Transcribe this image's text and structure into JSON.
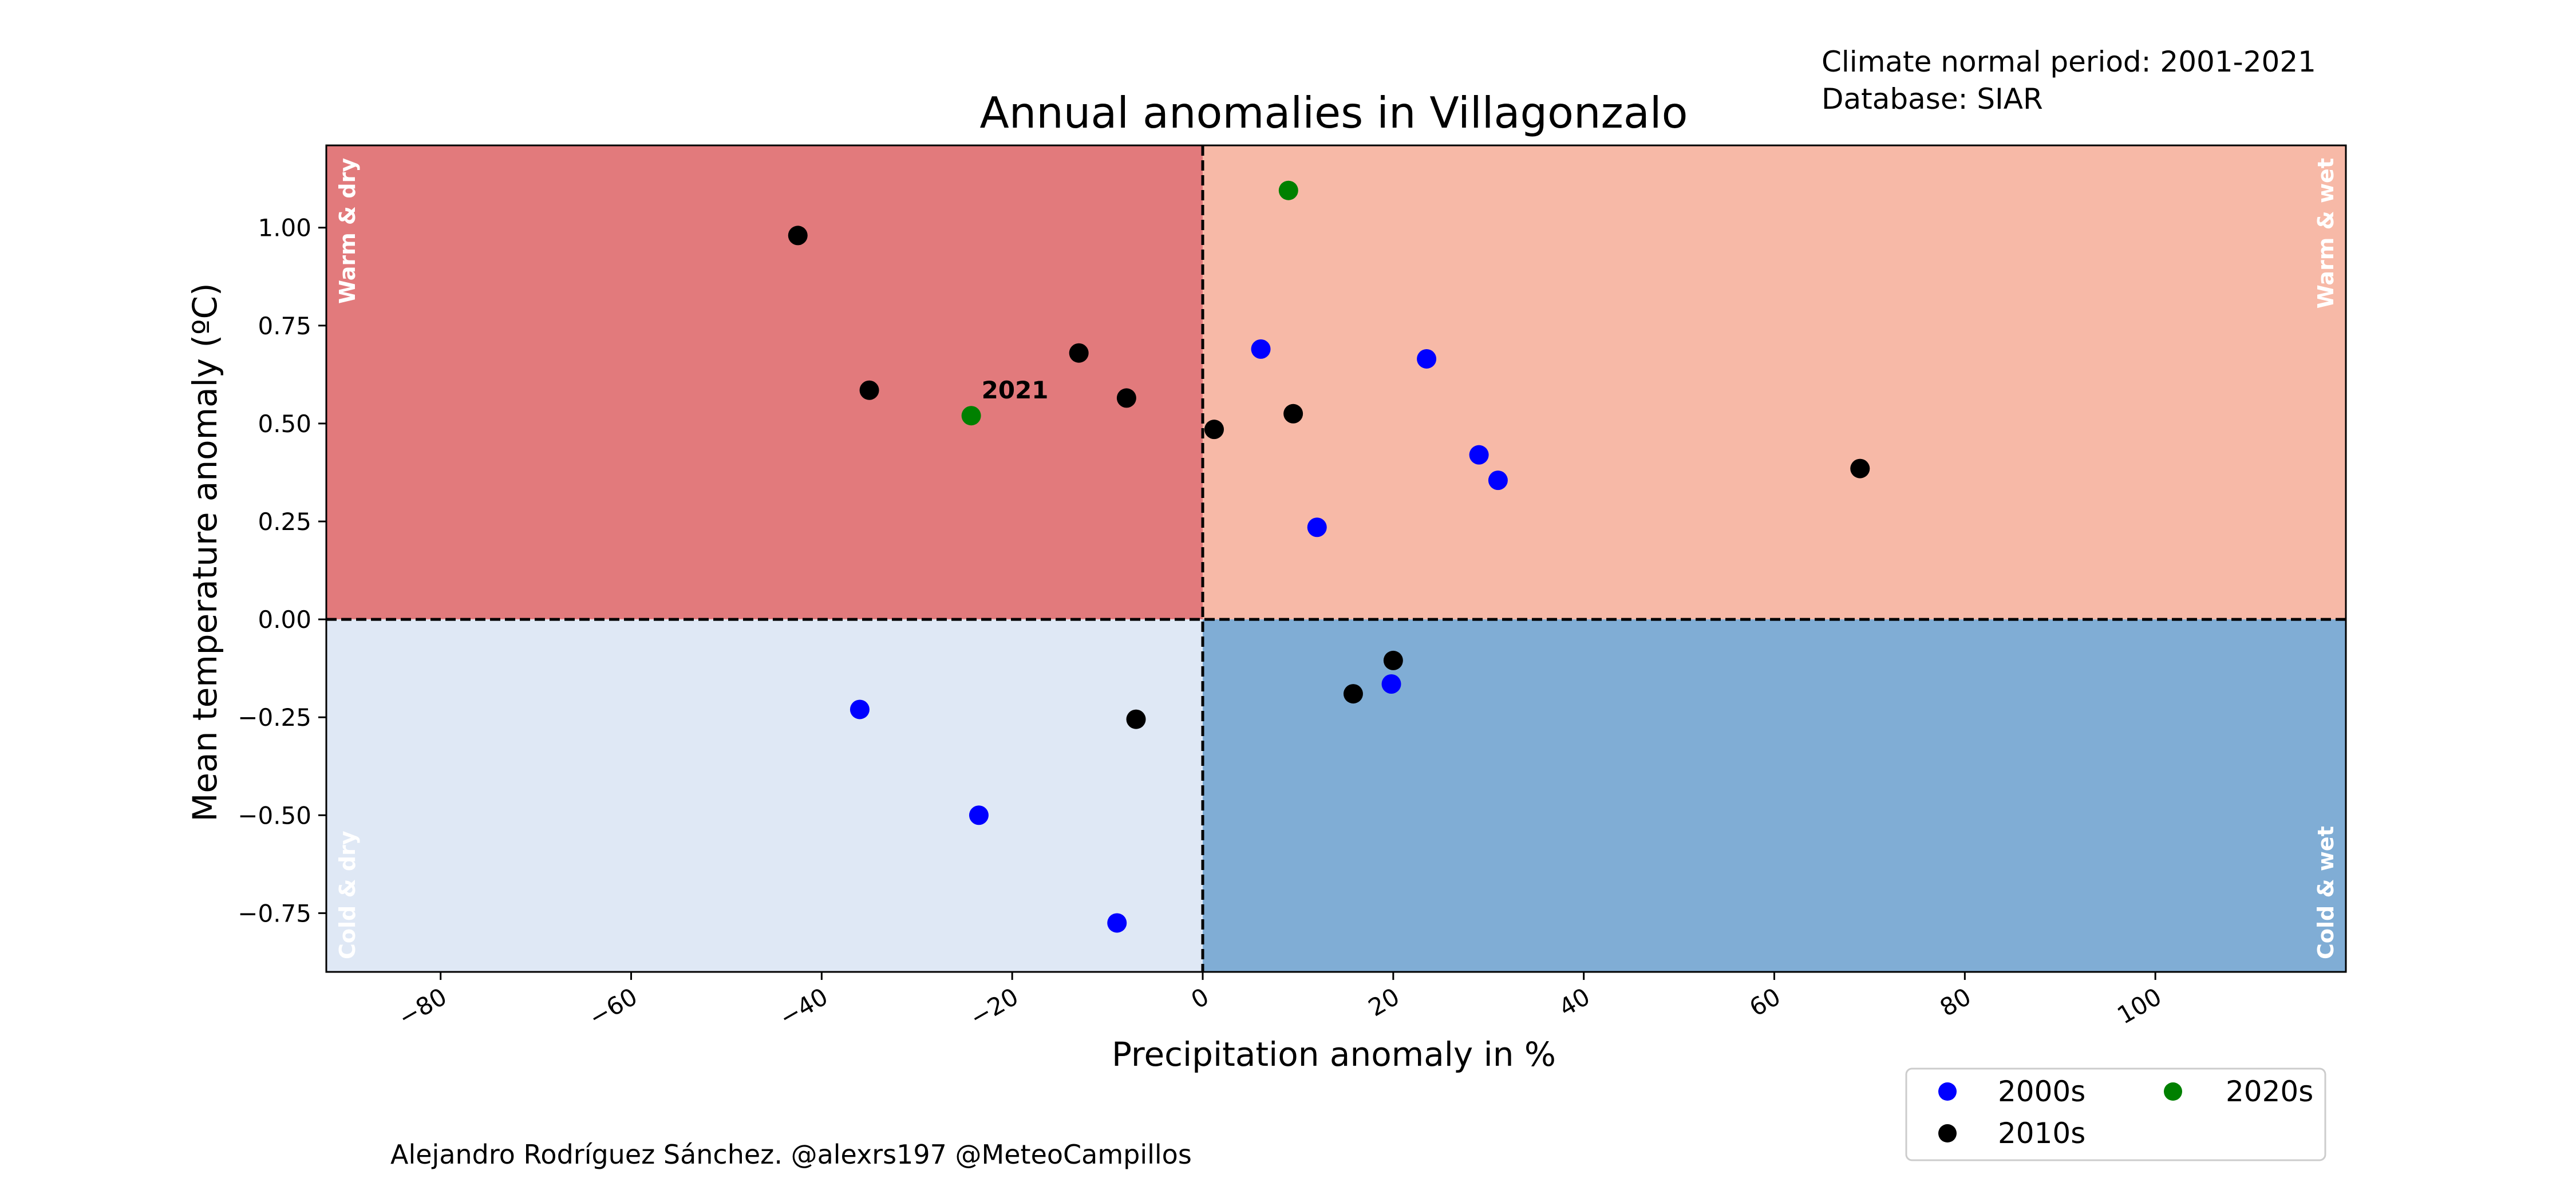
{
  "meta": {
    "normal_period": "Climate normal period: 2001-2021",
    "database": "Database: SIAR",
    "credit": "Alejandro Rodríguez Sánchez. @alexrs197 @MeteoCampillos"
  },
  "colors": {
    "warm_dry": "#e27a7c",
    "warm_wet": "#f7b9a7",
    "cold_dry": "#dfe8f5",
    "cold_wet": "#80add5",
    "2000s": "#0000ff",
    "2010s": "#000000",
    "2020s": "#008000"
  },
  "chart_data": {
    "type": "scatter",
    "title": "Annual anomalies in Villagonzalo",
    "xlabel": "Precipitation anomaly in %",
    "ylabel": "Mean temperature anomaly (ºC)",
    "xlim": [
      -92,
      120
    ],
    "ylim": [
      -0.9,
      1.21
    ],
    "x_ticks": [
      -80,
      -60,
      -40,
      -20,
      0,
      20,
      40,
      60,
      80,
      100
    ],
    "x_tick_labels": [
      "−80",
      "−60",
      "−40",
      "−20",
      "0",
      "20",
      "40",
      "60",
      "80",
      "100"
    ],
    "y_ticks": [
      1.0,
      0.75,
      0.5,
      0.25,
      0.0,
      -0.25,
      -0.5,
      -0.75
    ],
    "y_tick_labels": [
      "1.00",
      "0.75",
      "0.50",
      "0.25",
      "0.00",
      "−0.25",
      "−0.50",
      "−0.75"
    ],
    "quadrant_labels": {
      "warm_dry": "Warm & dry",
      "warm_wet": "Warm & wet",
      "cold_dry": "Cold & dry",
      "cold_wet": "Cold & wet"
    },
    "series": [
      {
        "name": "2000s",
        "color_key": "2000s",
        "points": [
          {
            "x": 6.1,
            "y": 0.69
          },
          {
            "x": 23.5,
            "y": 0.665
          },
          {
            "x": 29.0,
            "y": 0.42
          },
          {
            "x": 31.0,
            "y": 0.355
          },
          {
            "x": 12.0,
            "y": 0.235
          },
          {
            "x": -36.0,
            "y": -0.23
          },
          {
            "x": -23.5,
            "y": -0.5
          },
          {
            "x": -9.0,
            "y": -0.775
          },
          {
            "x": 19.8,
            "y": -0.165
          }
        ]
      },
      {
        "name": "2010s",
        "color_key": "2010s",
        "points": [
          {
            "x": -42.5,
            "y": 0.98
          },
          {
            "x": -35.0,
            "y": 0.585
          },
          {
            "x": -13.0,
            "y": 0.68
          },
          {
            "x": -8.0,
            "y": 0.565
          },
          {
            "x": 1.2,
            "y": 0.485
          },
          {
            "x": 9.5,
            "y": 0.525
          },
          {
            "x": 69.0,
            "y": 0.385
          },
          {
            "x": -7.0,
            "y": -0.255
          },
          {
            "x": 15.8,
            "y": -0.19
          },
          {
            "x": 20.0,
            "y": -0.105
          }
        ]
      },
      {
        "name": "2020s",
        "color_key": "2020s",
        "points": [
          {
            "x": 9.0,
            "y": 1.095
          },
          {
            "x": -24.3,
            "y": 0.52,
            "label": "2021"
          }
        ]
      }
    ],
    "legend_placement": "bottom-right, outside axes"
  }
}
